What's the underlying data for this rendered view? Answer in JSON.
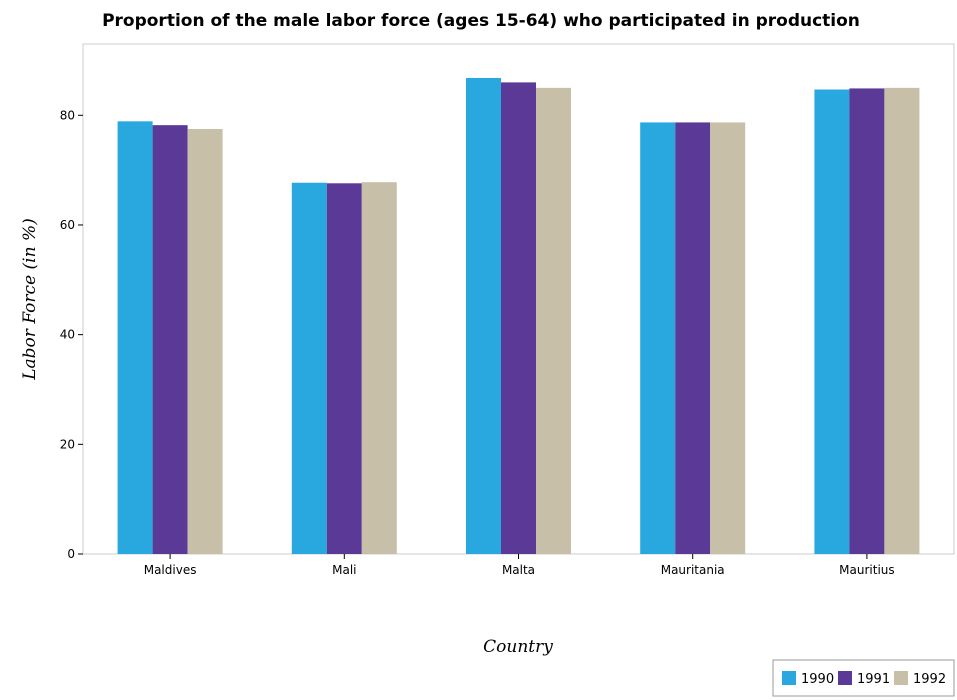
{
  "chart_data": {
    "type": "bar",
    "title": "Proportion of the male labor force (ages 15-64) who participated in production",
    "xlabel": "Country",
    "ylabel": "Labor Force (in %)",
    "categories": [
      "Maldives",
      "Mali",
      "Malta",
      "Mauritania",
      "Mauritius"
    ],
    "series": [
      {
        "name": "1990",
        "color": "#29a8e0",
        "values": [
          78.9,
          67.7,
          86.8,
          78.7,
          84.7
        ]
      },
      {
        "name": "1991",
        "color": "#5a3a96",
        "values": [
          78.2,
          67.6,
          86.0,
          78.7,
          84.9
        ]
      },
      {
        "name": "1992",
        "color": "#c8bfa8",
        "values": [
          77.5,
          67.8,
          85.0,
          78.7,
          85.0
        ]
      }
    ],
    "ylim": [
      0,
      93
    ],
    "yticks": [
      0,
      20,
      40,
      60,
      80
    ],
    "grid": false,
    "legend_position": "bottom-right"
  }
}
